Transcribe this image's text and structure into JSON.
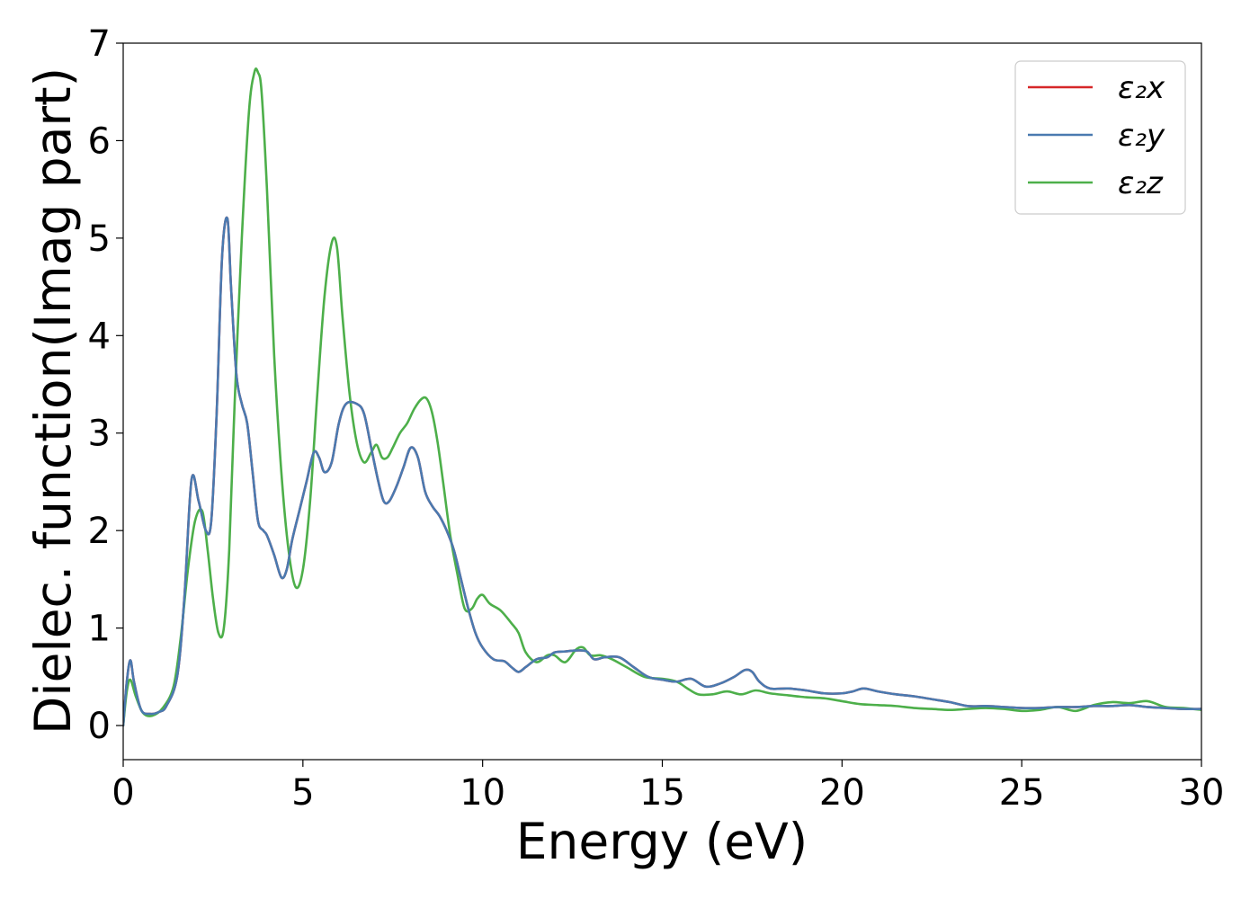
{
  "chart_data": {
    "type": "line",
    "title": "",
    "xlabel": "Energy (eV)",
    "ylabel": "Dielec. function(Imag part)",
    "xlim": [
      0,
      30
    ],
    "ylim": [
      -0.35,
      7
    ],
    "xticks": [
      0,
      5,
      10,
      15,
      20,
      25,
      30
    ],
    "yticks": [
      0,
      1,
      2,
      3,
      4,
      5,
      6,
      7
    ],
    "grid": false,
    "legend_position": "top-right",
    "series": [
      {
        "name": "ε₂x",
        "color": "#d62728",
        "x": [
          0,
          0.1,
          0.2,
          0.3,
          0.5,
          0.75,
          1.0,
          1.2,
          1.5,
          1.7,
          1.9,
          2.1,
          2.3,
          2.45,
          2.6,
          2.75,
          2.9,
          3.0,
          3.15,
          3.3,
          3.45,
          3.6,
          3.75,
          3.9,
          4.0,
          4.2,
          4.4,
          4.55,
          4.7,
          4.9,
          5.1,
          5.3,
          5.45,
          5.6,
          5.8,
          6.0,
          6.2,
          6.5,
          6.7,
          6.9,
          7.1,
          7.25,
          7.4,
          7.6,
          7.8,
          8.0,
          8.2,
          8.4,
          8.6,
          8.8,
          9.0,
          9.2,
          9.4,
          9.6,
          9.8,
          10.0,
          10.3,
          10.6,
          10.8,
          11.0,
          11.2,
          11.5,
          11.8,
          12.0,
          12.3,
          12.6,
          12.9,
          13.1,
          13.4,
          13.8,
          14.2,
          14.6,
          15.0,
          15.4,
          15.8,
          16.2,
          16.6,
          17.0,
          17.3,
          17.5,
          17.7,
          18.0,
          18.5,
          19.0,
          19.5,
          20.0,
          20.3,
          20.6,
          21.0,
          21.5,
          22.0,
          22.5,
          23.0,
          23.5,
          24.0,
          24.5,
          25.0,
          25.5,
          26.0,
          26.5,
          27.0,
          27.5,
          28.0,
          28.5,
          29.0,
          29.5,
          30.0
        ],
        "values": [
          0.0,
          0.45,
          0.67,
          0.45,
          0.16,
          0.12,
          0.14,
          0.2,
          0.5,
          1.3,
          2.52,
          2.3,
          2.0,
          2.1,
          3.2,
          4.8,
          5.2,
          4.5,
          3.6,
          3.3,
          3.1,
          2.6,
          2.1,
          2.0,
          1.95,
          1.75,
          1.52,
          1.6,
          1.9,
          2.2,
          2.5,
          2.8,
          2.75,
          2.6,
          2.7,
          3.1,
          3.3,
          3.3,
          3.2,
          2.85,
          2.5,
          2.3,
          2.3,
          2.45,
          2.65,
          2.85,
          2.75,
          2.4,
          2.25,
          2.15,
          2.0,
          1.8,
          1.5,
          1.2,
          0.95,
          0.8,
          0.68,
          0.66,
          0.6,
          0.55,
          0.6,
          0.68,
          0.7,
          0.75,
          0.76,
          0.77,
          0.76,
          0.68,
          0.7,
          0.7,
          0.6,
          0.5,
          0.47,
          0.45,
          0.48,
          0.4,
          0.43,
          0.5,
          0.57,
          0.55,
          0.45,
          0.38,
          0.38,
          0.36,
          0.33,
          0.33,
          0.35,
          0.38,
          0.35,
          0.32,
          0.3,
          0.27,
          0.24,
          0.2,
          0.2,
          0.19,
          0.18,
          0.18,
          0.19,
          0.19,
          0.2,
          0.2,
          0.21,
          0.19,
          0.18,
          0.17,
          0.17
        ]
      },
      {
        "name": "ε₂y",
        "color": "#4a7ab0",
        "x": [
          0,
          0.1,
          0.2,
          0.3,
          0.5,
          0.75,
          1.0,
          1.2,
          1.5,
          1.7,
          1.9,
          2.1,
          2.3,
          2.45,
          2.6,
          2.75,
          2.9,
          3.0,
          3.15,
          3.3,
          3.45,
          3.6,
          3.75,
          3.9,
          4.0,
          4.2,
          4.4,
          4.55,
          4.7,
          4.9,
          5.1,
          5.3,
          5.45,
          5.6,
          5.8,
          6.0,
          6.2,
          6.5,
          6.7,
          6.9,
          7.1,
          7.25,
          7.4,
          7.6,
          7.8,
          8.0,
          8.2,
          8.4,
          8.6,
          8.8,
          9.0,
          9.2,
          9.4,
          9.6,
          9.8,
          10.0,
          10.3,
          10.6,
          10.8,
          11.0,
          11.2,
          11.5,
          11.8,
          12.0,
          12.3,
          12.6,
          12.9,
          13.1,
          13.4,
          13.8,
          14.2,
          14.6,
          15.0,
          15.4,
          15.8,
          16.2,
          16.6,
          17.0,
          17.3,
          17.5,
          17.7,
          18.0,
          18.5,
          19.0,
          19.5,
          20.0,
          20.3,
          20.6,
          21.0,
          21.5,
          22.0,
          22.5,
          23.0,
          23.5,
          24.0,
          24.5,
          25.0,
          25.5,
          26.0,
          26.5,
          27.0,
          27.5,
          28.0,
          28.5,
          29.0,
          29.5,
          30.0
        ],
        "values": [
          0.0,
          0.45,
          0.67,
          0.45,
          0.16,
          0.12,
          0.14,
          0.2,
          0.5,
          1.3,
          2.52,
          2.3,
          2.0,
          2.1,
          3.2,
          4.8,
          5.2,
          4.5,
          3.6,
          3.3,
          3.1,
          2.6,
          2.1,
          2.0,
          1.95,
          1.75,
          1.52,
          1.6,
          1.9,
          2.2,
          2.5,
          2.8,
          2.75,
          2.6,
          2.7,
          3.1,
          3.3,
          3.3,
          3.2,
          2.85,
          2.5,
          2.3,
          2.3,
          2.45,
          2.65,
          2.85,
          2.75,
          2.4,
          2.25,
          2.15,
          2.0,
          1.8,
          1.5,
          1.2,
          0.95,
          0.8,
          0.68,
          0.66,
          0.6,
          0.55,
          0.6,
          0.68,
          0.7,
          0.75,
          0.76,
          0.77,
          0.76,
          0.68,
          0.7,
          0.7,
          0.6,
          0.5,
          0.47,
          0.45,
          0.48,
          0.4,
          0.43,
          0.5,
          0.57,
          0.55,
          0.45,
          0.38,
          0.38,
          0.36,
          0.33,
          0.33,
          0.35,
          0.38,
          0.35,
          0.32,
          0.3,
          0.27,
          0.24,
          0.2,
          0.2,
          0.19,
          0.18,
          0.18,
          0.19,
          0.19,
          0.2,
          0.2,
          0.21,
          0.19,
          0.18,
          0.17,
          0.17
        ]
      },
      {
        "name": "ε₂z",
        "color": "#4daf4a",
        "x": [
          0,
          0.1,
          0.2,
          0.35,
          0.55,
          0.8,
          1.1,
          1.4,
          1.6,
          1.8,
          2.0,
          2.2,
          2.35,
          2.5,
          2.65,
          2.8,
          2.95,
          3.1,
          3.3,
          3.5,
          3.65,
          3.75,
          3.85,
          4.0,
          4.2,
          4.4,
          4.6,
          4.8,
          5.0,
          5.2,
          5.4,
          5.6,
          5.8,
          5.95,
          6.1,
          6.3,
          6.5,
          6.7,
          6.9,
          7.05,
          7.2,
          7.35,
          7.5,
          7.7,
          7.9,
          8.1,
          8.3,
          8.45,
          8.6,
          8.75,
          8.9,
          9.1,
          9.3,
          9.5,
          9.7,
          9.85,
          10.0,
          10.2,
          10.5,
          10.8,
          11.0,
          11.2,
          11.5,
          11.8,
          12.0,
          12.3,
          12.6,
          12.8,
          13.0,
          13.3,
          13.6,
          14.0,
          14.5,
          15.0,
          15.4,
          15.7,
          16.0,
          16.4,
          16.8,
          17.2,
          17.6,
          18.0,
          18.5,
          19.0,
          19.5,
          20.0,
          20.5,
          21.0,
          21.5,
          22.0,
          22.5,
          23.0,
          23.5,
          24.0,
          24.5,
          25.0,
          25.5,
          26.0,
          26.5,
          27.0,
          27.5,
          28.0,
          28.5,
          29.0,
          29.5,
          30.0
        ],
        "values": [
          0.0,
          0.35,
          0.47,
          0.3,
          0.13,
          0.1,
          0.18,
          0.4,
          0.9,
          1.6,
          2.1,
          2.2,
          1.8,
          1.3,
          0.95,
          1.0,
          1.8,
          3.3,
          5.0,
          6.3,
          6.7,
          6.7,
          6.5,
          5.5,
          3.8,
          2.6,
          1.8,
          1.42,
          1.6,
          2.3,
          3.4,
          4.4,
          4.95,
          4.9,
          4.2,
          3.4,
          2.9,
          2.7,
          2.8,
          2.88,
          2.75,
          2.75,
          2.85,
          3.0,
          3.1,
          3.25,
          3.35,
          3.35,
          3.2,
          2.9,
          2.5,
          1.95,
          1.55,
          1.2,
          1.2,
          1.3,
          1.34,
          1.25,
          1.18,
          1.05,
          0.95,
          0.75,
          0.65,
          0.72,
          0.72,
          0.65,
          0.78,
          0.8,
          0.72,
          0.72,
          0.68,
          0.6,
          0.5,
          0.48,
          0.45,
          0.38,
          0.32,
          0.32,
          0.35,
          0.32,
          0.36,
          0.33,
          0.31,
          0.29,
          0.28,
          0.25,
          0.22,
          0.21,
          0.2,
          0.18,
          0.17,
          0.16,
          0.17,
          0.18,
          0.17,
          0.15,
          0.16,
          0.19,
          0.15,
          0.21,
          0.24,
          0.23,
          0.25,
          0.19,
          0.18,
          0.16
        ]
      }
    ]
  }
}
